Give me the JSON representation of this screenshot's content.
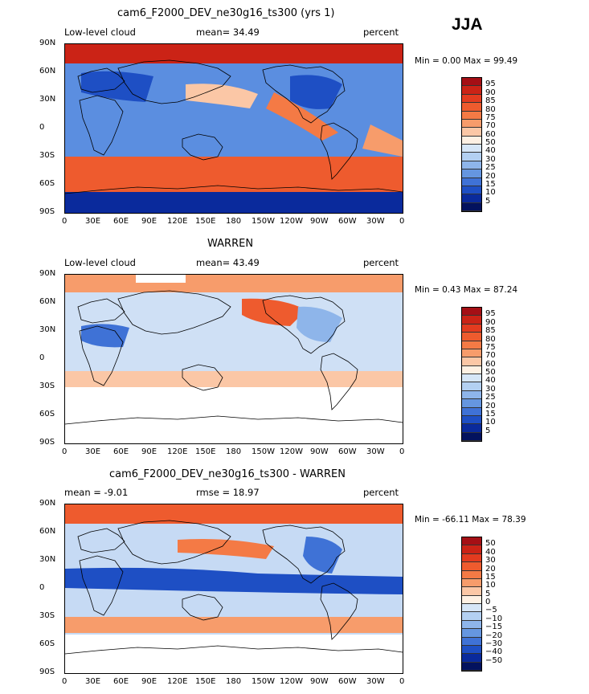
{
  "season": "JJA",
  "panels": [
    {
      "title": "cam6_F2000_DEV_ne30g16_ts300 (yrs 1)",
      "left_label": "Low-level cloud",
      "center_label": "mean=   34.49",
      "right_label": "percent",
      "min_max": "Min =    0.00 Max =   99.49",
      "levels": [
        "95",
        "90",
        "85",
        "80",
        "75",
        "70",
        "60",
        "50",
        "40",
        "30",
        "25",
        "20",
        "15",
        "10",
        "5"
      ],
      "colors": [
        "#a50f15",
        "#cb2316",
        "#e33b1f",
        "#ee5b2e",
        "#f47a45",
        "#f79c6b",
        "#fbc7a6",
        "#fdf0e3",
        "#d6e6f7",
        "#b3d0f2",
        "#8eb5ea",
        "#6596e0",
        "#3f72d6",
        "#1e4fc4",
        "#0a2a9c",
        "#03125e"
      ],
      "stats": {
        "mean": 34.49,
        "min": 0.0,
        "max": 99.49
      }
    },
    {
      "title": "WARREN",
      "left_label": "Low-level cloud",
      "center_label": "mean=   43.49",
      "right_label": "percent",
      "min_max": "Min =    0.43 Max =   87.24",
      "levels": [
        "95",
        "90",
        "85",
        "80",
        "75",
        "70",
        "60",
        "50",
        "40",
        "30",
        "25",
        "20",
        "15",
        "10",
        "5"
      ],
      "colors": [
        "#a50f15",
        "#cb2316",
        "#e33b1f",
        "#ee5b2e",
        "#f47a45",
        "#f79c6b",
        "#fbc7a6",
        "#fdf0e3",
        "#d6e6f7",
        "#b3d0f2",
        "#8eb5ea",
        "#6596e0",
        "#3f72d6",
        "#1e4fc4",
        "#0a2a9c",
        "#03125e"
      ],
      "stats": {
        "mean": 43.49,
        "min": 0.43,
        "max": 87.24
      }
    },
    {
      "title": "cam6_F2000_DEV_ne30g16_ts300 - WARREN",
      "left_label": "mean =   -9.01",
      "center_label": "rmse =   18.97",
      "right_label": "percent",
      "min_max": "Min = -66.11 Max =   78.39",
      "levels": [
        "50",
        "40",
        "30",
        "20",
        "15",
        "10",
        "5",
        "0",
        "−5",
        "−10",
        "−15",
        "−20",
        "−30",
        "−40",
        "−50"
      ],
      "colors": [
        "#a50f15",
        "#cb2316",
        "#e33b1f",
        "#ee5b2e",
        "#f47a45",
        "#f79c6b",
        "#fbc7a6",
        "#fdf0e3",
        "#d6e6f7",
        "#b3d0f2",
        "#8eb5ea",
        "#6596e0",
        "#3f72d6",
        "#1e4fc4",
        "#0a2a9c",
        "#03125e"
      ],
      "stats": {
        "mean": -9.01,
        "rmse": 18.97,
        "min": -66.11,
        "max": 78.39
      }
    }
  ],
  "lat_ticks": [
    "90N",
    "60N",
    "30N",
    "0",
    "30S",
    "60S",
    "90S"
  ],
  "lon_ticks": [
    "0",
    "30E",
    "60E",
    "90E",
    "120E",
    "150E",
    "180",
    "150W",
    "120W",
    "90W",
    "60W",
    "30W",
    "0"
  ]
}
